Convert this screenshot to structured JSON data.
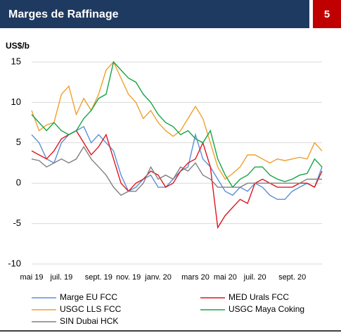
{
  "header": {
    "title": "Marges de Raffinage",
    "page": "5"
  },
  "chart_data": {
    "type": "line",
    "y_label": "US$/b",
    "categories": [
      "mai 19",
      null,
      null,
      null,
      "juil. 19",
      null,
      null,
      null,
      null,
      "sept. 19",
      null,
      null,
      null,
      "nov. 19",
      null,
      null,
      null,
      "janv. 20",
      null,
      null,
      null,
      null,
      "mars 20",
      null,
      null,
      null,
      "mai 20",
      null,
      null,
      null,
      "juil. 20",
      null,
      null,
      null,
      null,
      "sept. 20",
      null,
      null,
      null,
      null
    ],
    "ylim": [
      -10,
      15
    ],
    "yticks": [
      -10,
      -5,
      0,
      5,
      10,
      15
    ],
    "grid": true,
    "series": [
      {
        "name": "Marge EU FCC",
        "color": "#5b8fd4",
        "values": [
          6,
          5,
          3,
          2.5,
          5,
          6,
          6.5,
          7,
          5,
          6,
          5,
          4,
          1,
          -1,
          -0.5,
          0.5,
          1,
          -0.5,
          -0.5,
          0.5,
          1.5,
          2,
          6,
          3,
          2,
          0.5,
          -1,
          -1.5,
          -0.5,
          -1,
          0,
          -0.5,
          -1.5,
          -2,
          -2,
          -1,
          -0.5,
          0,
          -0.5,
          2
        ]
      },
      {
        "name": "MED Urals FCC",
        "color": "#e0161f",
        "values": [
          4,
          3.5,
          3,
          4,
          5.5,
          6,
          6.5,
          5,
          3.5,
          4.5,
          6,
          3,
          0,
          -1,
          0,
          0.5,
          1.5,
          1,
          -0.5,
          0,
          1.5,
          2.5,
          3,
          5,
          2,
          -5.5,
          -4,
          -3,
          -2,
          -2.5,
          0,
          0.5,
          0,
          -0.5,
          -0.5,
          -0.5,
          0,
          0,
          -0.5,
          1.5
        ]
      },
      {
        "name": "USGC LLS FCC",
        "color": "#f0a030",
        "values": [
          9,
          6.5,
          7.2,
          7.5,
          11,
          12,
          8.5,
          10.5,
          9,
          11,
          14,
          15,
          13,
          11,
          10,
          8,
          9,
          7.5,
          6.5,
          5.8,
          6.5,
          8,
          9.5,
          8,
          5,
          2,
          0.5,
          1.2,
          2,
          3.5,
          3.5,
          3,
          2.5,
          3,
          2.8,
          3,
          3.2,
          3,
          5,
          4
        ]
      },
      {
        "name": "USGC Maya Coking",
        "color": "#14a544",
        "values": [
          8.5,
          7.5,
          6.5,
          7.5,
          6.5,
          6,
          6.5,
          8,
          9,
          10.5,
          11,
          15,
          14,
          13,
          12.5,
          11,
          10,
          8.5,
          7.5,
          7,
          6,
          6.5,
          5.5,
          5,
          6.5,
          3,
          1,
          -0.5,
          0.5,
          1,
          2,
          2,
          1,
          0.5,
          0.2,
          0.5,
          1,
          1.2,
          3,
          2
        ]
      },
      {
        "name": "SIN Dubai HCK",
        "color": "#808080",
        "values": [
          3,
          2.8,
          2,
          2.5,
          3,
          2.5,
          3,
          4.5,
          3,
          2,
          1,
          -0.5,
          -1.5,
          -1,
          -1,
          0,
          2,
          0.5,
          1,
          0.5,
          2,
          1.5,
          2.5,
          1,
          0.5,
          -0.5,
          -0.5,
          -0.5,
          -0.5,
          0,
          0,
          0,
          0,
          0,
          0,
          0,
          0,
          0.5,
          0.5,
          0.5
        ]
      }
    ]
  }
}
